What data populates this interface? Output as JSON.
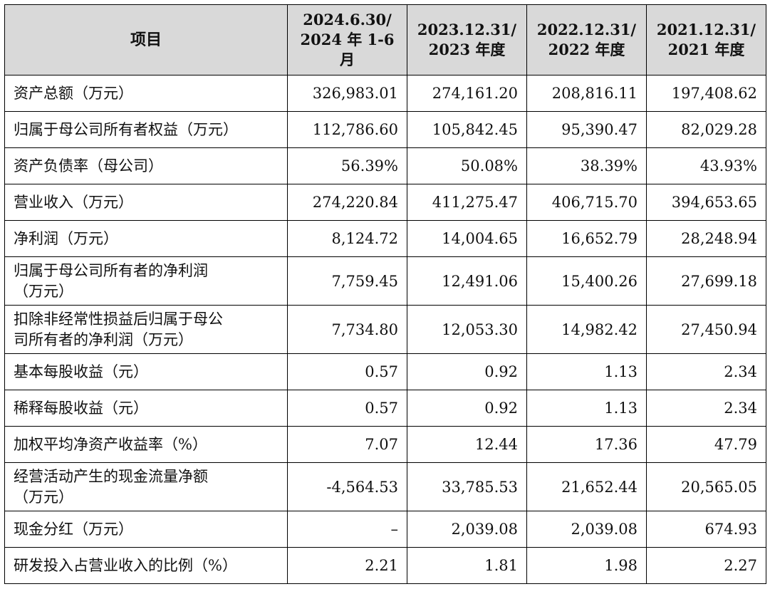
{
  "table": {
    "headers": [
      "项目",
      "2024.6.30/\n2024 年 1-6\n月",
      "2023.12.31/\n2023 年度",
      "2022.12.31/\n2022 年度",
      "2021.12.31/\n2021 年度"
    ],
    "rows": [
      {
        "label": "资产总额（万元）",
        "values": [
          "326,983.01",
          "274,161.20",
          "208,816.11",
          "197,408.62"
        ]
      },
      {
        "label": "归属于母公司所有者权益（万元）",
        "values": [
          "112,786.60",
          "105,842.45",
          "95,390.47",
          "82,029.28"
        ]
      },
      {
        "label": "资产负债率（母公司）",
        "values": [
          "56.39%",
          "50.08%",
          "38.39%",
          "43.93%"
        ]
      },
      {
        "label": "营业收入（万元）",
        "values": [
          "274,220.84",
          "411,275.47",
          "406,715.70",
          "394,653.65"
        ]
      },
      {
        "label": "净利润（万元）",
        "values": [
          "8,124.72",
          "14,004.65",
          "16,652.79",
          "28,248.94"
        ]
      },
      {
        "label": "归属于母公司所有者的净利润\n（万元）",
        "values": [
          "7,759.45",
          "12,491.06",
          "15,400.26",
          "27,699.18"
        ]
      },
      {
        "label": "扣除非经常性损益后归属于母公\n司所有者的净利润（万元）",
        "values": [
          "7,734.80",
          "12,053.30",
          "14,982.42",
          "27,450.94"
        ]
      },
      {
        "label": "基本每股收益（元）",
        "values": [
          "0.57",
          "0.92",
          "1.13",
          "2.34"
        ]
      },
      {
        "label": "稀释每股收益（元）",
        "values": [
          "0.57",
          "0.92",
          "1.13",
          "2.34"
        ]
      },
      {
        "label": "加权平均净资产收益率（%）",
        "values": [
          "7.07",
          "12.44",
          "17.36",
          "47.79"
        ]
      },
      {
        "label": "经营活动产生的现金流量净额\n（万元）",
        "values": [
          "-4,564.53",
          "33,785.53",
          "21,652.44",
          "20,565.05"
        ]
      },
      {
        "label": "现金分红（万元）",
        "values": [
          "–",
          "2,039.08",
          "2,039.08",
          "674.93"
        ]
      },
      {
        "label": "研发投入占营业收入的比例（%）",
        "values": [
          "2.21",
          "1.81",
          "1.98",
          "2.27"
        ]
      }
    ]
  }
}
